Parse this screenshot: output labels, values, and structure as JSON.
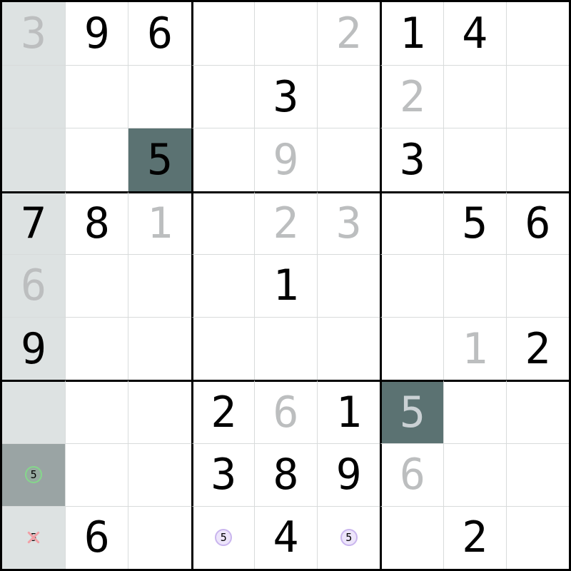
{
  "board": {
    "rows_count": 9,
    "cols_count": 9,
    "rows": [
      [
        {
          "v": "3",
          "s": "gray",
          "bg": "column"
        },
        {
          "v": "9",
          "s": "black"
        },
        {
          "v": "6",
          "s": "black"
        },
        {},
        {},
        {
          "v": "2",
          "s": "gray"
        },
        {
          "v": "1",
          "s": "black"
        },
        {
          "v": "4",
          "s": "black"
        },
        {}
      ],
      [
        {
          "bg": "column"
        },
        {},
        {},
        {},
        {
          "v": "3",
          "s": "black"
        },
        {},
        {
          "v": "2",
          "s": "gray"
        },
        {},
        {}
      ],
      [
        {
          "bg": "column"
        },
        {},
        {
          "v": "5",
          "s": "black",
          "bg": "highlight"
        },
        {},
        {
          "v": "9",
          "s": "gray"
        },
        {},
        {
          "v": "3",
          "s": "black"
        },
        {},
        {}
      ],
      [
        {
          "v": "7",
          "s": "black",
          "bg": "column"
        },
        {
          "v": "8",
          "s": "black"
        },
        {
          "v": "1",
          "s": "gray"
        },
        {},
        {
          "v": "2",
          "s": "gray"
        },
        {
          "v": "3",
          "s": "gray"
        },
        {},
        {
          "v": "5",
          "s": "black"
        },
        {
          "v": "6",
          "s": "black"
        }
      ],
      [
        {
          "v": "6",
          "s": "gray",
          "bg": "column"
        },
        {},
        {},
        {},
        {
          "v": "1",
          "s": "black"
        },
        {},
        {},
        {},
        {}
      ],
      [
        {
          "v": "9",
          "s": "black",
          "bg": "column"
        },
        {},
        {},
        {},
        {},
        {},
        {},
        {
          "v": "1",
          "s": "gray"
        },
        {
          "v": "2",
          "s": "black"
        }
      ],
      [
        {
          "bg": "column"
        },
        {},
        {},
        {
          "v": "2",
          "s": "black"
        },
        {
          "v": "6",
          "s": "gray"
        },
        {
          "v": "1",
          "s": "black"
        },
        {
          "v": "5",
          "s": "light",
          "bg": "highlight"
        },
        {},
        {}
      ],
      [
        {
          "v": "5",
          "mark": "green-circle",
          "bg": "selected"
        },
        {},
        {},
        {
          "v": "3",
          "s": "black"
        },
        {
          "v": "8",
          "s": "black"
        },
        {
          "v": "9",
          "s": "black"
        },
        {
          "v": "6",
          "s": "gray"
        },
        {},
        {}
      ],
      [
        {
          "v": "5",
          "mark": "pink-cross",
          "bg": "column"
        },
        {
          "v": "6",
          "s": "black"
        },
        {},
        {
          "v": "5",
          "mark": "purple-circle"
        },
        {
          "v": "4",
          "s": "black"
        },
        {
          "v": "5",
          "mark": "purple-circle"
        },
        {},
        {
          "v": "2",
          "s": "black"
        },
        {}
      ]
    ]
  },
  "colors": {
    "column_highlight_bg": "#dde2e2",
    "selected_cell_bg": "#9aa4a4",
    "dark_highlight_bg": "#5b7272",
    "digit_black": "#000000",
    "digit_gray": "#bcbebf",
    "digit_light_on_dark": "#cad1d4",
    "grid_line_thin": "#d8dbdb",
    "grid_line_thick": "#000000",
    "green_circle": "#85d78b",
    "purple_circle_border": "#c9b5ee",
    "purple_circle_fill": "#ede5fb",
    "cross_pink": "#f2a0a6"
  }
}
